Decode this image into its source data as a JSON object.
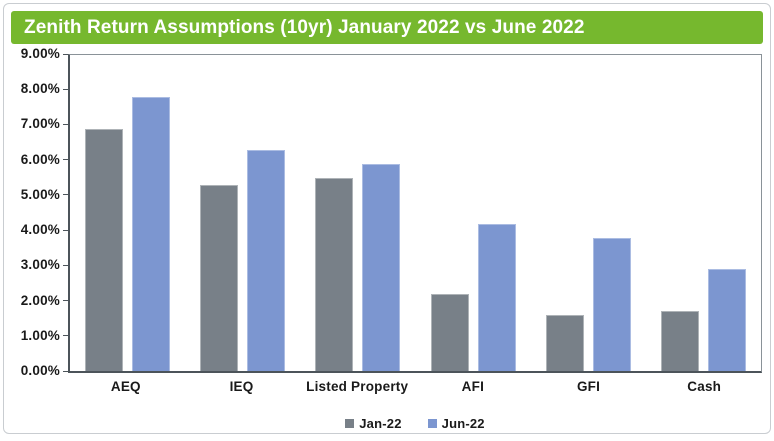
{
  "title": "Zenith Return Assumptions (10yr) January 2022 vs June 2022",
  "colors": {
    "background": "#FFFFFF",
    "header_bg": "#76B82E",
    "title_text": "#FFFFFF",
    "frame_border": "#C9CDD1",
    "plot_border": "#8A9298",
    "axis_line": "#4C545A",
    "label_text": "#1A1A1A"
  },
  "chart_data": {
    "type": "bar",
    "title": "Zenith Return Assumptions (10yr) January 2022 vs June 2022",
    "categories": [
      "AEQ",
      "IEQ",
      "Listed Property",
      "AFI",
      "GFI",
      "Cash"
    ],
    "series": [
      {
        "name": "Jan-22",
        "color": "#788088",
        "border_color": "#AEB3B7",
        "values": [
          6.9,
          5.3,
          5.5,
          2.2,
          1.6,
          1.7
        ]
      },
      {
        "name": "Jun-22",
        "color": "#7C96D0",
        "border_color": "#ABBCE2",
        "values": [
          7.8,
          6.3,
          5.9,
          4.2,
          3.8,
          2.9
        ]
      }
    ],
    "xlabel": "",
    "ylabel": "",
    "ylim": [
      0,
      9
    ],
    "y_tick_step": 1,
    "y_tick_labels": [
      "0.00%",
      "1.00%",
      "2.00%",
      "3.00%",
      "4.00%",
      "5.00%",
      "6.00%",
      "7.00%",
      "8.00%",
      "9.00%"
    ],
    "value_format": "percent",
    "grid": false,
    "legend_position": "bottom"
  }
}
